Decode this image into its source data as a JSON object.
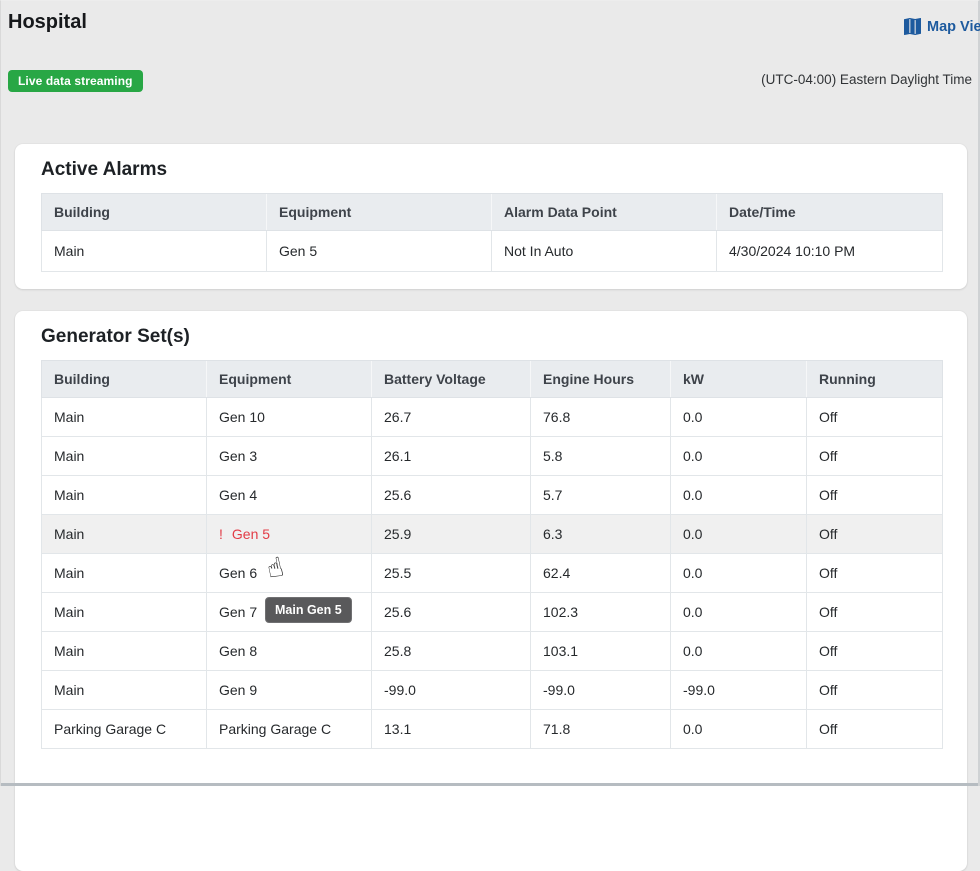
{
  "page": {
    "title": "Hospital",
    "map_view_label": "Map View",
    "live_badge": "Live data streaming",
    "timezone": "(UTC-04:00) Eastern Daylight Time"
  },
  "active_alarms": {
    "title": "Active Alarms",
    "columns": [
      "Building",
      "Equipment",
      "Alarm Data Point",
      "Date/Time"
    ],
    "rows": [
      [
        "Main",
        "Gen 5",
        "Not In Auto",
        "4/30/2024 10:10 PM"
      ]
    ]
  },
  "generators": {
    "title": "Generator Set(s)",
    "columns": [
      "Building",
      "Equipment",
      "Battery Voltage",
      "Engine Hours",
      "kW",
      "Running"
    ],
    "rows": [
      {
        "cells": [
          "Main",
          "Gen 10",
          "26.7",
          "76.8",
          "0.0",
          "Off"
        ],
        "alarm": false,
        "hovered": false
      },
      {
        "cells": [
          "Main",
          "Gen 3",
          "26.1",
          "5.8",
          "0.0",
          "Off"
        ],
        "alarm": false,
        "hovered": false
      },
      {
        "cells": [
          "Main",
          "Gen 4",
          "25.6",
          "5.7",
          "0.0",
          "Off"
        ],
        "alarm": false,
        "hovered": false
      },
      {
        "cells": [
          "Main",
          "Gen 5",
          "25.9",
          "6.3",
          "0.0",
          "Off"
        ],
        "alarm": true,
        "hovered": true
      },
      {
        "cells": [
          "Main",
          "Gen 6",
          "25.5",
          "62.4",
          "0.0",
          "Off"
        ],
        "alarm": false,
        "hovered": false
      },
      {
        "cells": [
          "Main",
          "Gen 7",
          "25.6",
          "102.3",
          "0.0",
          "Off"
        ],
        "alarm": false,
        "hovered": false
      },
      {
        "cells": [
          "Main",
          "Gen 8",
          "25.8",
          "103.1",
          "0.0",
          "Off"
        ],
        "alarm": false,
        "hovered": false
      },
      {
        "cells": [
          "Main",
          "Gen 9",
          "-99.0",
          "-99.0",
          "-99.0",
          "Off"
        ],
        "alarm": false,
        "hovered": false
      },
      {
        "cells": [
          "Parking Garage C",
          "Parking Garage C",
          "13.1",
          "71.8",
          "0.0",
          "Off"
        ],
        "alarm": false,
        "hovered": false
      }
    ]
  },
  "tooltip": {
    "text": "Main Gen 5"
  },
  "colors": {
    "accent_blue": "#1d5a9e",
    "success_green": "#28a745",
    "alarm_red": "#e23c46",
    "tooltip_bg": "#59595b",
    "table_header_bg": "#e9ecef",
    "page_bg": "#eaeaea"
  }
}
